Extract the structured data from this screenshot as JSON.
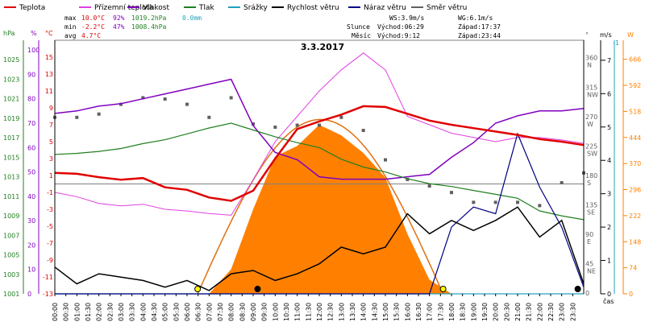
{
  "chart_data": {
    "type": "line",
    "title": "3.3.2017",
    "legend": [
      {
        "name": "Teplota",
        "color": "#e00000"
      },
      {
        "name": "Přízemní teplota",
        "color": "#e040e0"
      },
      {
        "name": "Vlhkost",
        "color": "#8000c0"
      },
      {
        "name": "Tlak",
        "color": "#208020"
      },
      {
        "name": "Srážky",
        "color": "#20a0c0"
      },
      {
        "name": "Rychlost větru",
        "color": "#000000"
      },
      {
        "name": "Náraz větru",
        "color": "#000080"
      },
      {
        "name": "Směr větru",
        "color": "#606060"
      }
    ],
    "stats": {
      "max": {
        "label": "max",
        "temp": "10.0°C",
        "hum": "92%",
        "press": "1019.2hPa",
        "rain": "0.0mm"
      },
      "min": {
        "label": "min",
        "temp": "-2.2°C",
        "hum": "47%",
        "press": "1008.4hPa"
      },
      "avg": {
        "label": "avg",
        "temp": "4.7°C"
      }
    },
    "wind": {
      "ws": "WS:3.9m/s",
      "wg": "WG:6.1m/s"
    },
    "sun": {
      "label": "Slunce",
      "rise": "Východ:06:29",
      "set": "Západ:17:37"
    },
    "moon": {
      "label": "Měsíc",
      "rise": "Východ:9:12",
      "set": "Západ:23:44"
    },
    "axes": {
      "hpa_unit": "hPa",
      "pct_unit": "%",
      "temp_unit": "°C",
      "deg_unit": "°",
      "ms_unit": "m/s",
      "w_unit": "W",
      "ms_extra": "-1",
      "time_label": "čas",
      "hpa_ticks": [
        "1025",
        "1023",
        "1021",
        "1019",
        "1017",
        "1015",
        "1013",
        "1011",
        "1009",
        "1007",
        "1005",
        "1003",
        "1001"
      ],
      "pct_ticks": [
        "100",
        "90",
        "80",
        "70",
        "60",
        "50",
        "40",
        "30",
        "20",
        "10",
        "0"
      ],
      "temp_ticks": [
        "15",
        "13",
        "11",
        "9",
        "7",
        "5",
        "3",
        "1",
        "-1",
        "-3",
        "-5",
        "-7",
        "-9",
        "-11",
        "-13"
      ],
      "deg_ticks": [
        {
          "v": "360",
          "d": "N"
        },
        {
          "v": "315",
          "d": "NW"
        },
        {
          "v": "270",
          "d": "W"
        },
        {
          "v": "225",
          "d": "SW"
        },
        {
          "v": "180",
          "d": "S"
        },
        {
          "v": "135",
          "d": "SE"
        },
        {
          "v": "90",
          "d": "E"
        },
        {
          "v": "45",
          "d": "NE"
        },
        {
          "v": "0",
          "d": ""
        }
      ],
      "ms_ticks": [
        "7",
        "6",
        "5",
        "4",
        "3",
        "2",
        "1",
        "0"
      ],
      "w_ticks": [
        "666",
        "592",
        "518",
        "444",
        "370",
        "296",
        "222",
        "148",
        "74",
        "0"
      ],
      "x_ticks": [
        "00:00",
        "00:30",
        "01:00",
        "01:30",
        "02:00",
        "02:30",
        "03:00",
        "03:30",
        "04:00",
        "04:30",
        "05:00",
        "05:30",
        "06:00",
        "06:30",
        "07:00",
        "07:30",
        "08:00",
        "08:30",
        "09:00",
        "09:30",
        "10:00",
        "10:30",
        "11:00",
        "11:30",
        "12:00",
        "12:30",
        "13:00",
        "13:30",
        "14:00",
        "14:30",
        "15:00",
        "15:30",
        "16:00",
        "16:30",
        "17:00",
        "17:30",
        "18:00",
        "18:30",
        "19:00",
        "19:30",
        "20:00",
        "20:30",
        "21:00",
        "21:30",
        "22:00",
        "22:30",
        "23:00",
        "23:30"
      ]
    },
    "hours": [
      0,
      1,
      2,
      3,
      4,
      5,
      6,
      7,
      8,
      9,
      10,
      11,
      12,
      13,
      14,
      15,
      16,
      17,
      18,
      19,
      20,
      21,
      22,
      23,
      24
    ],
    "series": [
      {
        "name": "Teplota",
        "unit": "°C",
        "values": [
          1.3,
          1.2,
          0.8,
          0.5,
          0.7,
          -0.4,
          -0.7,
          -1.6,
          -2.0,
          -0.8,
          3.0,
          6.5,
          7.4,
          8.2,
          9.2,
          9.1,
          8.3,
          7.5,
          7.0,
          6.6,
          6.2,
          5.8,
          5.3,
          5.0,
          4.6
        ]
      },
      {
        "name": "Přízemní teplota",
        "unit": "°C",
        "values": [
          -1.0,
          -1.5,
          -2.3,
          -2.6,
          -2.4,
          -3.0,
          -3.2,
          -3.5,
          -3.7,
          0.5,
          5.0,
          8.0,
          11.0,
          13.5,
          15.5,
          13.5,
          8.0,
          7.0,
          6.0,
          5.5,
          5.0,
          5.5,
          5.5,
          5.2,
          4.8
        ]
      },
      {
        "name": "Vlhkost",
        "unit": "%",
        "values": [
          74,
          75,
          77,
          78,
          80,
          82,
          84,
          86,
          88,
          69,
          58,
          55,
          48,
          47,
          47,
          47,
          48,
          49,
          56,
          62,
          70,
          73,
          75,
          75,
          76
        ]
      },
      {
        "name": "Tlak",
        "unit": "hPa",
        "values": [
          1015.3,
          1015.4,
          1015.6,
          1015.9,
          1016.4,
          1016.8,
          1017.4,
          1018.0,
          1018.5,
          1017.8,
          1017.1,
          1016.5,
          1016.0,
          1014.8,
          1014.0,
          1013.5,
          1012.8,
          1012.3,
          1012.0,
          1011.6,
          1011.2,
          1010.8,
          1009.5,
          1009.0,
          1008.6
        ]
      },
      {
        "name": "Srážky",
        "unit": "mm",
        "values": [
          0,
          0,
          0,
          0,
          0,
          0,
          0,
          0,
          0,
          0,
          0,
          0,
          0,
          0,
          0,
          0,
          0,
          0,
          0,
          0,
          0,
          0,
          0,
          0,
          0
        ]
      },
      {
        "name": "Rychlost větru",
        "unit": "m/s",
        "values": [
          0.8,
          0.3,
          0.6,
          0.5,
          0.4,
          0.2,
          0.4,
          0.1,
          0.6,
          0.7,
          0.4,
          0.6,
          0.9,
          1.4,
          1.2,
          1.4,
          2.4,
          1.8,
          2.2,
          1.9,
          2.2,
          2.6,
          1.7,
          2.2,
          0.3
        ]
      },
      {
        "name": "Náraz větru",
        "unit": "m/s",
        "values": [
          0,
          0,
          0,
          0,
          0,
          0,
          0,
          0,
          0,
          0,
          0,
          0,
          0,
          0,
          0,
          0,
          0,
          0,
          2.0,
          2.6,
          2.4,
          4.8,
          3.2,
          2.0,
          0.2
        ]
      },
      {
        "name": "Směr větru",
        "unit": "°",
        "values": [
          270,
          270,
          275,
          290,
          300,
          298,
          290,
          270,
          300,
          260,
          255,
          258,
          258,
          270,
          250,
          205,
          175,
          165,
          155,
          140,
          140,
          140,
          135,
          170,
          185
        ]
      },
      {
        "name": "Radiace",
        "unit": "W",
        "values": [
          0,
          0,
          0,
          0,
          0,
          0,
          0,
          0,
          70,
          240,
          390,
          420,
          480,
          450,
          400,
          330,
          170,
          40,
          0,
          0,
          0,
          0,
          0,
          0,
          0
        ]
      },
      {
        "name": "Teoretická radiace",
        "unit": "W",
        "values": [
          0,
          0,
          0,
          0,
          0,
          0,
          0,
          0,
          120,
          280,
          400,
          470,
          495,
          470,
          400,
          280,
          120,
          0,
          0,
          0,
          0,
          0,
          0,
          0,
          0
        ]
      }
    ],
    "markers": {
      "sunrise_hour": 6.48,
      "sunset_hour": 17.62,
      "moonrise_hour": 9.2,
      "moonset_hour": 23.73
    },
    "ranges": {
      "hpa": [
        1001,
        1027
      ],
      "pct": [
        0,
        104
      ],
      "temp": [
        -13,
        17
      ],
      "deg": [
        0,
        388
      ],
      "ms": [
        0,
        7.6
      ],
      "w": [
        0,
        720
      ]
    }
  }
}
